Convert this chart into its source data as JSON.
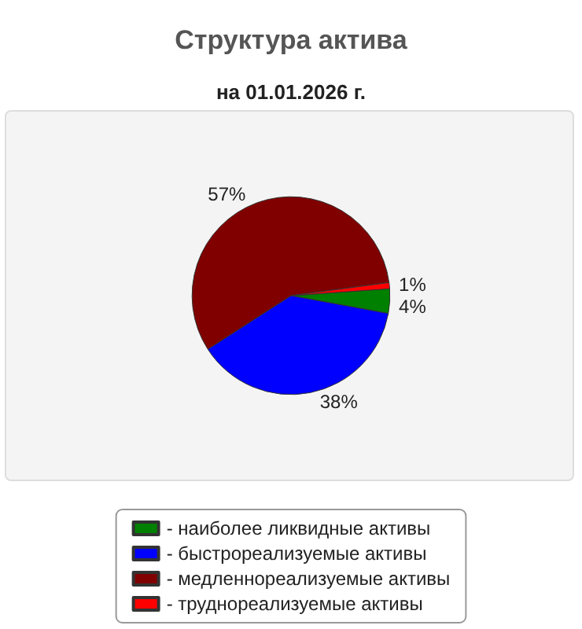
{
  "chart_data": {
    "type": "pie",
    "title": "Структура актива",
    "subtitle": "на 01.01.2026 г.",
    "categories": [
      "- наиболее ликвидные активы",
      "- быстрореализуемые активы",
      "- медленнореализуемые активы",
      "- труднореализуемые активы"
    ],
    "values": [
      4,
      38,
      57,
      1
    ],
    "value_labels": [
      "4%",
      "38%",
      "57%",
      "1%"
    ],
    "colors": [
      "#008000",
      "#0000ff",
      "#800000",
      "#ff0000"
    ],
    "legend": "bottom"
  }
}
